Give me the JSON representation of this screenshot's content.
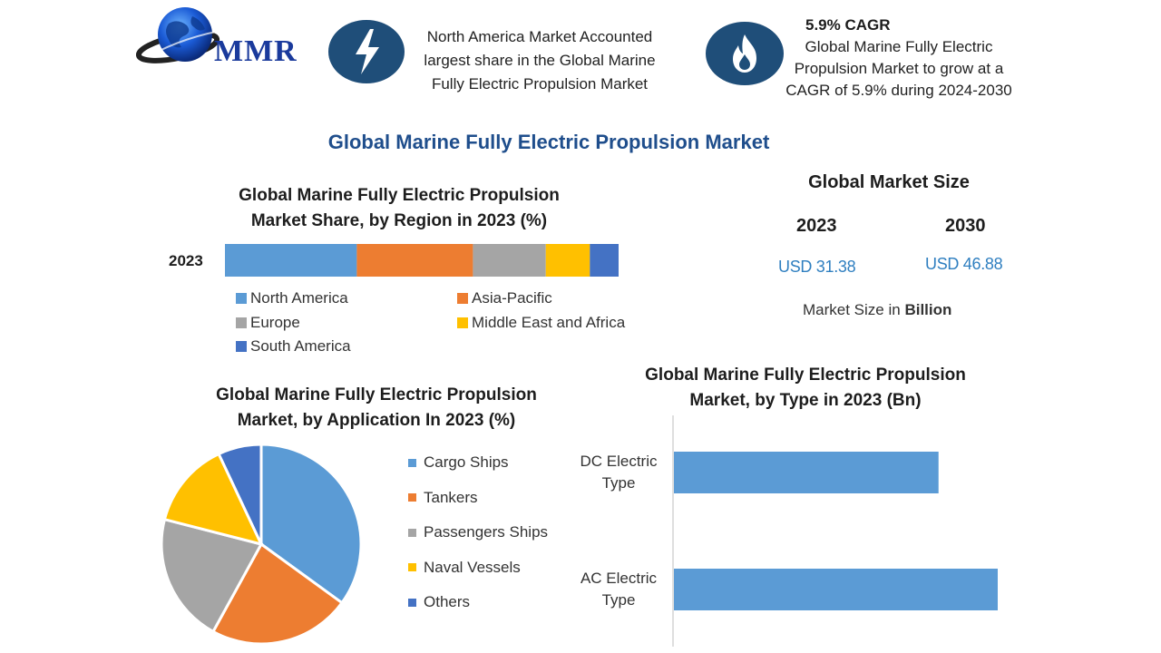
{
  "colors": {
    "blue": "#5b9bd5",
    "orange": "#ed7d31",
    "gray": "#a5a5a5",
    "yellow": "#ffc000",
    "dark_blue": "#4472c4",
    "navy": "#1f4e79",
    "title_blue": "#1f4e8c"
  },
  "logo": {
    "text": "MMR",
    "icon": "globe-icon"
  },
  "header": {
    "na_icon": "lightning-icon",
    "na_text": "North America Market Accounted largest share in the Global Marine Fully Electric Propulsion Market",
    "cagr_icon": "flame-icon",
    "cagr_title": "5.9% CAGR",
    "cagr_text": "Global Marine Fully Electric Propulsion Market to grow at a CAGR of 5.9% during 2024-2030"
  },
  "main_title": "Global Marine Fully Electric Propulsion Market",
  "market_size": {
    "title": "Global Market Size",
    "year1": "2023",
    "value1": "USD 31.38",
    "year2": "2030",
    "value2": "USD 46.88",
    "note_prefix": "Market Size in",
    "note_unit": "Billion"
  },
  "chart_data": [
    {
      "type": "bar",
      "orientation": "horizontal-stacked",
      "title": "Global Marine Fully Electric Propulsion Market Share, by Region in 2023 (%)",
      "categories": [
        "2023"
      ],
      "series": [
        {
          "name": "North America",
          "values": [
            33.5
          ]
        },
        {
          "name": "Asia-Pacific",
          "values": [
            29.5
          ]
        },
        {
          "name": "Europe",
          "values": [
            18.5
          ]
        },
        {
          "name": "Middle East and Africa",
          "values": [
            11.2
          ]
        },
        {
          "name": "South America",
          "values": [
            7.3
          ]
        }
      ],
      "xlim": [
        0,
        100
      ],
      "grid": false,
      "legend": "bottom"
    },
    {
      "type": "pie",
      "title": "Global Marine Fully Electric Propulsion Market, by Application In 2023 (%)",
      "categories": [
        "Cargo Ships",
        "Tankers",
        "Passengers Ships",
        "Naval Vessels",
        "Others"
      ],
      "values": [
        35,
        23,
        21,
        14,
        7
      ],
      "legend": "right"
    },
    {
      "type": "bar",
      "orientation": "horizontal",
      "title": "Global Marine Fully Electric Propulsion Market, by Type in 2023 (Bn)",
      "categories": [
        "DC Electric Type",
        "AC Electric Type"
      ],
      "values": [
        13.2,
        18.0
      ],
      "xlim": [
        0,
        20
      ],
      "grid": false
    }
  ]
}
